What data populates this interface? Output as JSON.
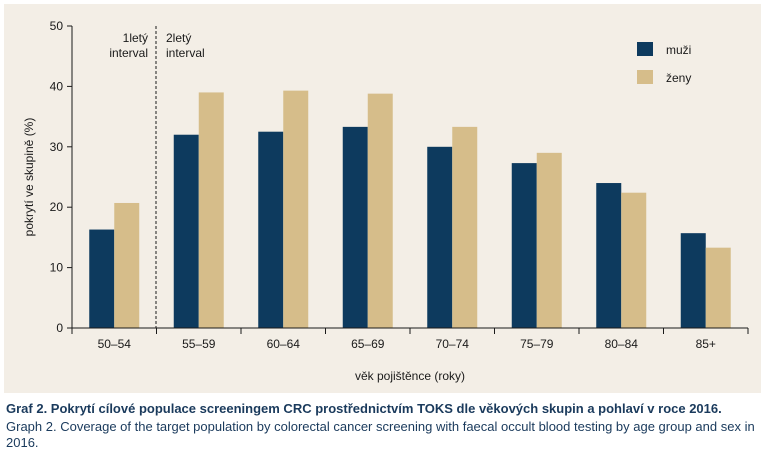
{
  "chart_data": {
    "type": "bar",
    "categories": [
      "50–54",
      "55–59",
      "60–64",
      "65–69",
      "70–74",
      "75–79",
      "80–84",
      "85+"
    ],
    "series": [
      {
        "name": "muži",
        "values": [
          16.3,
          32.0,
          32.5,
          33.3,
          30.0,
          27.3,
          24.0,
          15.7
        ]
      },
      {
        "name": "ženy",
        "values": [
          20.7,
          39.0,
          39.3,
          38.8,
          33.3,
          29.0,
          22.4,
          13.3
        ]
      }
    ],
    "ylim": [
      0,
      50
    ],
    "yticks": [
      "0",
      "10",
      "20",
      "30",
      "40",
      "50"
    ],
    "ylabel": "pokrytí ve skupině (%)",
    "xlabel": "věk pojištěnce (roky)",
    "legend_position": "top-right",
    "annotations": [
      {
        "line1": "1letý",
        "line2": "interval"
      },
      {
        "line1": "2letý",
        "line2": "interval"
      }
    ],
    "colors": {
      "muži": "#0d3a5e",
      "ženy": "#d6bd8a"
    },
    "background": "#f3eee6"
  },
  "caption": {
    "title": "Graf 2. Pokrytí cílové populace screeningem CRC prostřednictvím TOKS dle věkových skupin a pohlaví v roce 2016.",
    "subtitle": "Graph 2. Coverage of the target population by colorectal cancer screening with faecal occult blood testing by age group and sex in 2016."
  }
}
